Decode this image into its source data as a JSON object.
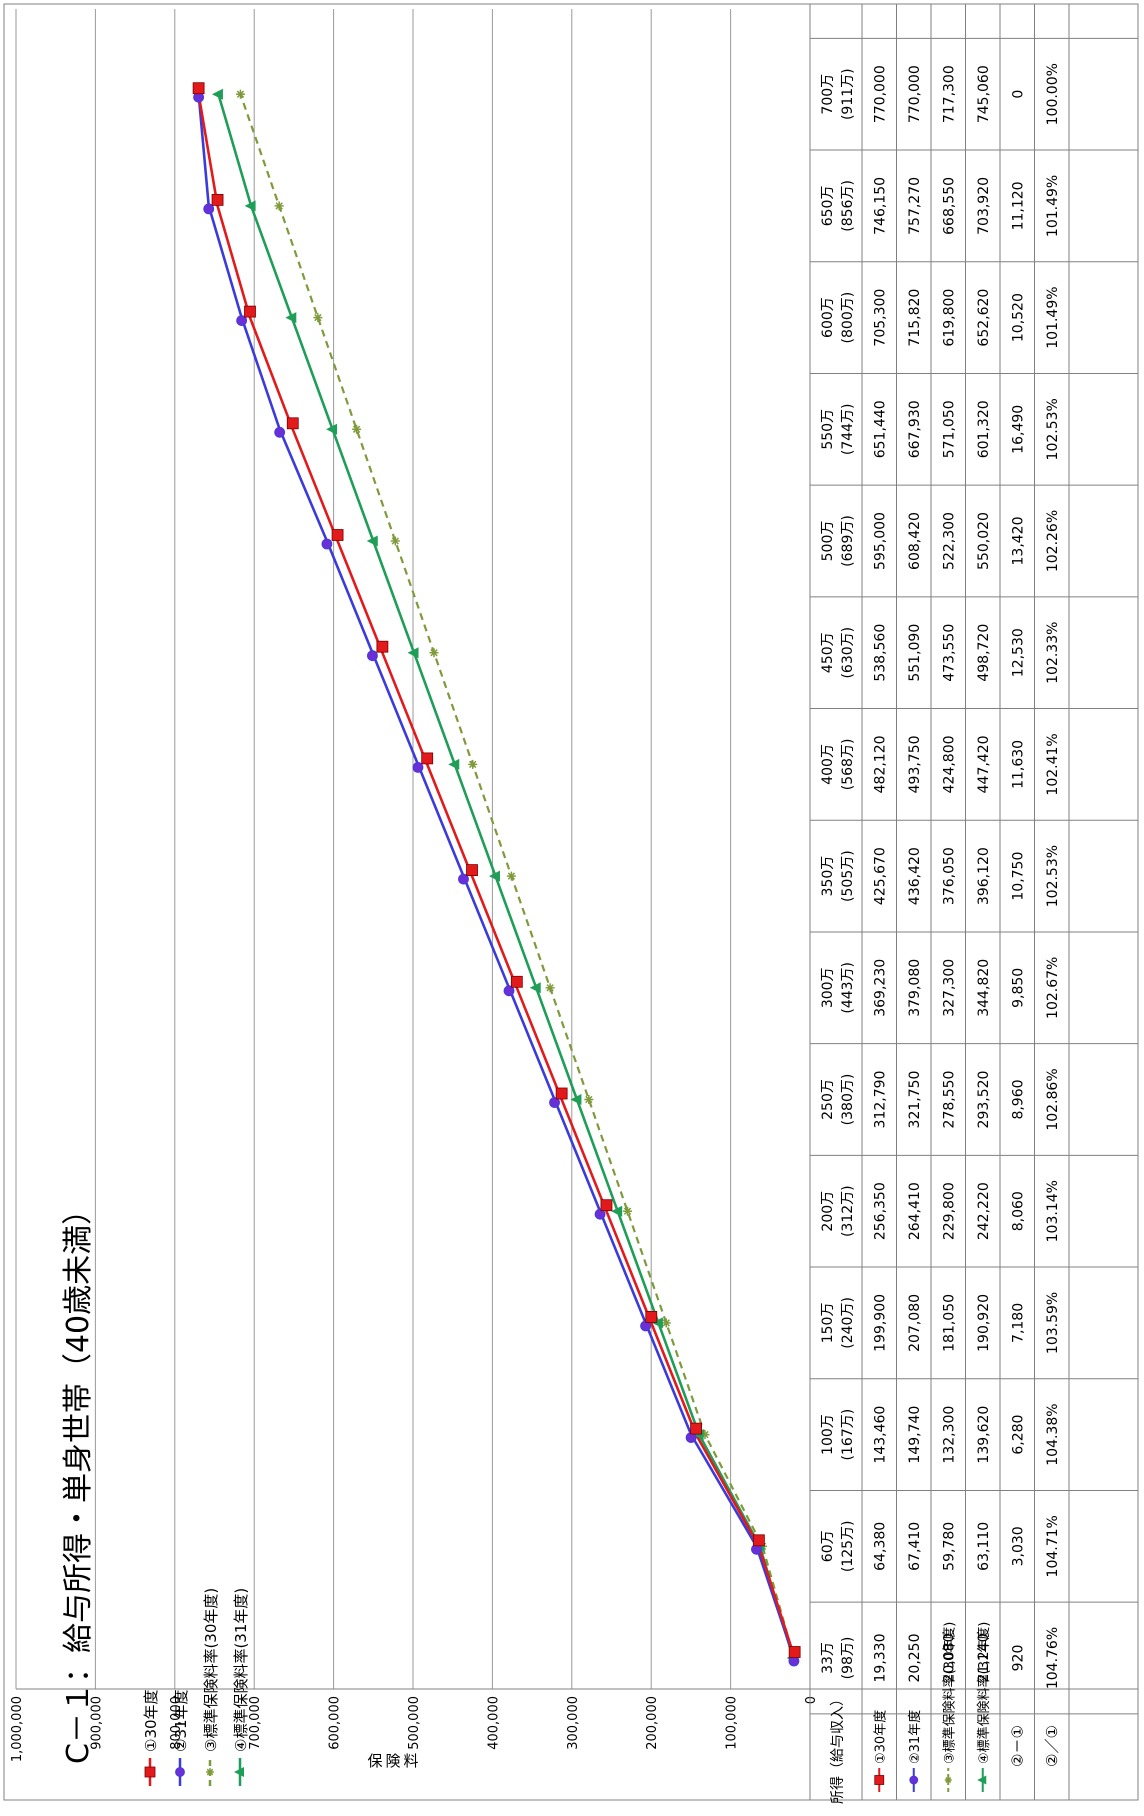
{
  "chart_data": {
    "type": "line",
    "title": "C－１：給与所得・単身世帯（40歳未満）",
    "ylabel": "保険料",
    "xlabel_row_header": "所得（給与収入）",
    "ylim": [
      0,
      1000000
    ],
    "yticks": [
      "0",
      "100,000",
      "200,000",
      "300,000",
      "400,000",
      "500,000",
      "600,000",
      "700,000",
      "800,000",
      "900,000",
      "1,000,000"
    ],
    "categories": [
      {
        "income": "33万",
        "salary": "(98万)"
      },
      {
        "income": "60万",
        "salary": "(125万)"
      },
      {
        "income": "100万",
        "salary": "(167万)"
      },
      {
        "income": "150万",
        "salary": "(240万)"
      },
      {
        "income": "200万",
        "salary": "(312万)"
      },
      {
        "income": "250万",
        "salary": "(380万)"
      },
      {
        "income": "300万",
        "salary": "(443万)"
      },
      {
        "income": "350万",
        "salary": "(505万)"
      },
      {
        "income": "400万",
        "salary": "(568万)"
      },
      {
        "income": "450万",
        "salary": "(630万)"
      },
      {
        "income": "500万",
        "salary": "(689万)"
      },
      {
        "income": "550万",
        "salary": "(744万)"
      },
      {
        "income": "600万",
        "salary": "(800万)"
      },
      {
        "income": "650万",
        "salary": "(856万)"
      },
      {
        "income": "700万",
        "salary": "(911万)"
      }
    ],
    "series": [
      {
        "name": "①30年度",
        "color": "#e31a1c",
        "marker": "square",
        "dash": "solid",
        "values": [
          19330,
          64380,
          143460,
          199900,
          256350,
          312790,
          369230,
          425670,
          482120,
          538560,
          595000,
          651440,
          705300,
          746150,
          770000
        ],
        "labels": [
          "19,330",
          "64,380",
          "143,460",
          "199,900",
          "256,350",
          "312,790",
          "369,230",
          "425,670",
          "482,120",
          "538,560",
          "595,000",
          "651,440",
          "705,300",
          "746,150",
          "770,000"
        ]
      },
      {
        "name": "②31年度",
        "color": "#3b3bdc",
        "marker": "circle",
        "dash": "solid",
        "values": [
          20250,
          67410,
          149740,
          207080,
          264410,
          321750,
          379080,
          436420,
          493750,
          551090,
          608420,
          667930,
          715820,
          757270,
          770000
        ],
        "labels": [
          "20,250",
          "67,410",
          "149,740",
          "207,080",
          "264,410",
          "321,750",
          "379,080",
          "436,420",
          "493,750",
          "551,090",
          "608,420",
          "667,930",
          "715,820",
          "757,270",
          "770,000"
        ]
      },
      {
        "name": "③標準保険料率(30年度)",
        "color": "#7f9a3a",
        "marker": "star",
        "dash": "dashed",
        "values": [
          20080,
          59780,
          132300,
          181050,
          229800,
          278550,
          327300,
          376050,
          424800,
          473550,
          522300,
          571050,
          619800,
          668550,
          717300
        ],
        "labels": [
          "20,080",
          "59,780",
          "132,300",
          "181,050",
          "229,800",
          "278,550",
          "327,300",
          "376,050",
          "424,800",
          "473,550",
          "522,300",
          "571,050",
          "619,800",
          "668,550",
          "717,300"
        ]
      },
      {
        "name": "④標準保険料率(31年度)",
        "color": "#1f9e58",
        "marker": "triangle",
        "dash": "solid",
        "values": [
          21240,
          63110,
          139620,
          190920,
          242220,
          293520,
          344820,
          396120,
          447420,
          498720,
          550020,
          601320,
          652620,
          703920,
          745060
        ],
        "labels": [
          "21,240",
          "63,110",
          "139,620",
          "190,920",
          "242,220",
          "293,520",
          "344,820",
          "396,120",
          "447,420",
          "498,720",
          "550,020",
          "601,320",
          "652,620",
          "703,920",
          "745,060"
        ]
      }
    ],
    "diff_row": {
      "label": "②－①",
      "values": [
        "920",
        "3,030",
        "6,280",
        "7,180",
        "8,060",
        "8,960",
        "9,850",
        "10,750",
        "11,630",
        "12,530",
        "13,420",
        "16,490",
        "10,520",
        "11,120",
        "0"
      ]
    },
    "ratio_row": {
      "label": "②／①",
      "values": [
        "104.76%",
        "104.71%",
        "104.38%",
        "103.59%",
        "103.14%",
        "102.86%",
        "102.67%",
        "102.53%",
        "102.41%",
        "102.33%",
        "102.26%",
        "102.53%",
        "101.49%",
        "101.49%",
        "100.00%"
      ]
    },
    "legend_position": "top-left",
    "grid": true
  }
}
